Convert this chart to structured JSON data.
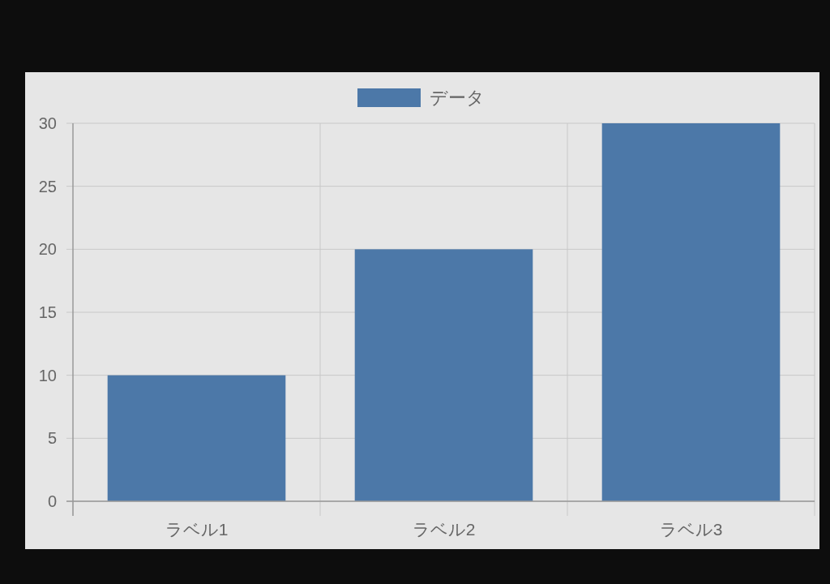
{
  "chart_data": {
    "type": "bar",
    "categories": [
      "ラベル1",
      "ラベル2",
      "ラベル3"
    ],
    "series": [
      {
        "name": "データ",
        "color": "#4c78a8",
        "values": [
          10,
          20,
          30
        ]
      }
    ],
    "ylim": [
      0,
      30
    ],
    "yticks": [
      0,
      5,
      10,
      15,
      20,
      25,
      30
    ],
    "grid": true,
    "legend": "top"
  }
}
